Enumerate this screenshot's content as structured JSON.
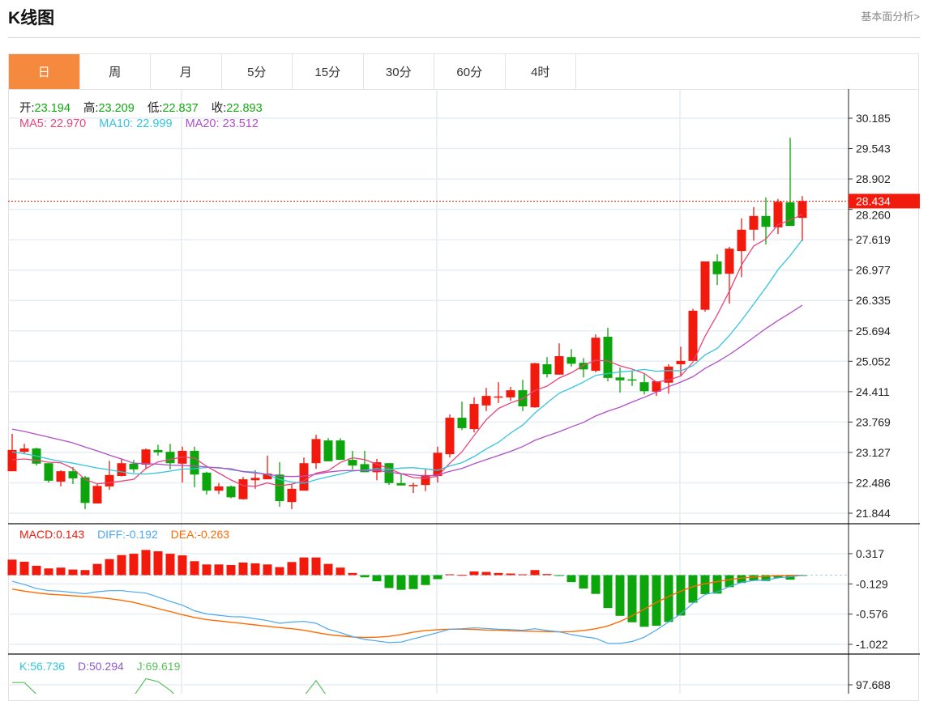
{
  "header": {
    "title": "K线图",
    "link": "基本面分析>"
  },
  "tabs": [
    {
      "label": "日",
      "active": true
    },
    {
      "label": "周"
    },
    {
      "label": "月"
    },
    {
      "label": "5分"
    },
    {
      "label": "15分"
    },
    {
      "label": "30分"
    },
    {
      "label": "60分"
    },
    {
      "label": "4时"
    }
  ],
  "info": {
    "open_label": "开:",
    "open": "23.194",
    "high_label": "高:",
    "high": "23.209",
    "low_label": "低:",
    "low": "22.837",
    "close_label": "收:",
    "close": "22.893",
    "ma5_label": "MA5:",
    "ma5": "22.970",
    "ma10_label": "MA10:",
    "ma10": "22.999",
    "ma20_label": "MA20:",
    "ma20": "23.512"
  },
  "macd_info": {
    "macd_label": "MACD:",
    "macd": "0.143",
    "diff_label": "DIFF:",
    "diff": "-0.192",
    "dea_label": "DEA:",
    "dea": "-0.263"
  },
  "kdj_info": {
    "k_label": "K:",
    "k": "56.736",
    "d_label": "D:",
    "d": "50.294",
    "j_label": "J:",
    "j": "69.619"
  },
  "colors": {
    "up": "#f21a0c",
    "down": "#0ca50c",
    "ma5": "#e8457a",
    "ma10": "#33c5dd",
    "ma20": "#b04fc8",
    "diff": "#4aa8f0",
    "dea": "#ff6a00",
    "j": "#5cbf5c",
    "accent": "#f5893d"
  },
  "chart_data": [
    {
      "type": "candlestick",
      "ylim": [
        21.844,
        30.185
      ],
      "y_ticks": [
        "30.185",
        "29.543",
        "28.902",
        "28.260",
        "27.619",
        "26.977",
        "26.335",
        "25.694",
        "25.052",
        "24.411",
        "23.769",
        "23.127",
        "22.486",
        "21.844"
      ],
      "last_price": "28.434",
      "ohlc": [
        [
          22.73,
          23.52,
          22.73,
          23.18
        ],
        [
          23.14,
          23.31,
          23.09,
          23.21
        ],
        [
          23.21,
          23.23,
          22.85,
          22.89
        ],
        [
          22.9,
          22.9,
          22.49,
          22.53
        ],
        [
          22.51,
          22.75,
          22.41,
          22.73
        ],
        [
          22.73,
          22.82,
          22.46,
          22.58
        ],
        [
          22.6,
          22.63,
          21.93,
          22.06
        ],
        [
          22.05,
          22.46,
          22.05,
          22.42
        ],
        [
          22.41,
          22.95,
          22.34,
          22.65
        ],
        [
          22.63,
          22.98,
          22.62,
          22.9
        ],
        [
          22.89,
          22.97,
          22.7,
          22.77
        ],
        [
          22.87,
          23.21,
          22.77,
          23.19
        ],
        [
          23.18,
          23.29,
          23.06,
          23.13
        ],
        [
          23.14,
          23.31,
          22.77,
          22.9
        ],
        [
          22.89,
          23.25,
          22.49,
          23.16
        ],
        [
          23.16,
          23.25,
          22.39,
          22.66
        ],
        [
          22.7,
          22.72,
          22.24,
          22.32
        ],
        [
          22.32,
          22.48,
          22.25,
          22.41
        ],
        [
          22.41,
          22.43,
          22.16,
          22.18
        ],
        [
          22.14,
          22.61,
          22.13,
          22.56
        ],
        [
          22.54,
          22.75,
          22.36,
          22.59
        ],
        [
          22.56,
          23.06,
          22.56,
          22.68
        ],
        [
          22.66,
          22.92,
          21.98,
          22.1
        ],
        [
          22.08,
          22.46,
          21.93,
          22.36
        ],
        [
          22.32,
          23.02,
          22.32,
          22.9
        ],
        [
          22.9,
          23.5,
          22.78,
          23.41
        ],
        [
          23.38,
          23.43,
          22.94,
          22.94
        ],
        [
          23.38,
          23.43,
          22.97,
          22.97
        ],
        [
          22.97,
          23.16,
          22.77,
          22.85
        ],
        [
          22.88,
          23.16,
          22.71,
          22.71
        ],
        [
          22.71,
          22.99,
          22.54,
          22.92
        ],
        [
          22.9,
          22.9,
          22.44,
          22.48
        ],
        [
          22.48,
          22.68,
          22.43,
          22.43
        ],
        [
          22.43,
          22.49,
          22.27,
          22.44
        ],
        [
          22.44,
          22.78,
          22.31,
          22.65
        ],
        [
          22.63,
          23.25,
          22.49,
          23.12
        ],
        [
          23.09,
          23.93,
          23.02,
          23.86
        ],
        [
          23.86,
          24.2,
          23.6,
          23.64
        ],
        [
          23.62,
          24.29,
          23.55,
          24.15
        ],
        [
          24.12,
          24.49,
          24.0,
          24.32
        ],
        [
          24.29,
          24.61,
          24.17,
          24.31
        ],
        [
          24.29,
          24.51,
          24.22,
          24.44
        ],
        [
          24.44,
          24.66,
          24.0,
          24.1
        ],
        [
          24.08,
          25.02,
          24.07,
          25.01
        ],
        [
          24.99,
          25.14,
          24.71,
          24.78
        ],
        [
          24.77,
          25.43,
          24.77,
          25.16
        ],
        [
          25.14,
          25.31,
          24.94,
          25.0
        ],
        [
          25.02,
          25.12,
          24.71,
          24.88
        ],
        [
          24.85,
          25.62,
          24.82,
          25.55
        ],
        [
          25.57,
          25.76,
          24.63,
          24.7
        ],
        [
          24.71,
          24.92,
          24.39,
          24.65
        ],
        [
          24.67,
          24.85,
          24.53,
          24.65
        ],
        [
          24.61,
          24.78,
          24.35,
          24.42
        ],
        [
          24.41,
          24.63,
          24.32,
          24.63
        ],
        [
          24.6,
          24.99,
          24.37,
          24.94
        ],
        [
          24.99,
          25.36,
          24.75,
          25.06
        ],
        [
          25.06,
          26.16,
          25.06,
          26.12
        ],
        [
          26.14,
          27.16,
          26.1,
          27.16
        ],
        [
          27.16,
          27.31,
          26.66,
          26.89
        ],
        [
          26.9,
          27.47,
          26.27,
          27.43
        ],
        [
          27.38,
          28.07,
          26.83,
          27.83
        ],
        [
          27.83,
          28.31,
          27.6,
          28.12
        ],
        [
          28.12,
          28.51,
          27.52,
          27.89
        ],
        [
          27.88,
          28.48,
          27.74,
          28.42
        ],
        [
          28.41,
          29.77,
          27.91,
          27.91
        ],
        [
          28.08,
          28.54,
          27.59,
          28.434
        ]
      ],
      "ma_leading_values": {
        "ma5": [
          22.97,
          22.99,
          22.96,
          22.92
        ],
        "ma10": [
          23.14,
          23.1,
          23.05,
          22.99,
          22.94,
          22.9,
          22.85,
          22.8,
          22.76
        ],
        "ma20": [
          23.62,
          23.57,
          23.51,
          23.45,
          23.39,
          23.33,
          23.24,
          23.16,
          23.07,
          22.99,
          22.9,
          22.89,
          22.88,
          22.86,
          22.85,
          22.84,
          22.82,
          22.8,
          22.78
        ]
      }
    },
    {
      "type": "bar+line",
      "name": "MACD",
      "ylim": [
        -1.022,
        0.317
      ],
      "y_ticks": [
        "0.317",
        "-0.129",
        "-0.576",
        "-1.022"
      ],
      "macd": [
        0.229,
        0.198,
        0.138,
        0.099,
        0.111,
        0.083,
        0.075,
        0.166,
        0.237,
        0.296,
        0.316,
        0.372,
        0.352,
        0.316,
        0.292,
        0.206,
        0.158,
        0.158,
        0.15,
        0.186,
        0.174,
        0.158,
        0.119,
        0.194,
        0.261,
        0.261,
        0.166,
        0.111,
        0.032,
        -0.032,
        -0.091,
        -0.19,
        -0.217,
        -0.206,
        -0.146,
        -0.059,
        0.012,
        0.004,
        0.055,
        0.047,
        0.032,
        0.024,
        0.012,
        0.075,
        0.016,
        -0.008,
        -0.103,
        -0.198,
        -0.277,
        -0.486,
        -0.601,
        -0.696,
        -0.763,
        -0.747,
        -0.692,
        -0.597,
        -0.407,
        -0.281,
        -0.273,
        -0.178,
        -0.115,
        -0.079,
        -0.087,
        -0.04,
        -0.067,
        -0.008
      ],
      "diff": [
        -0.091,
        -0.138,
        -0.198,
        -0.229,
        -0.237,
        -0.257,
        -0.273,
        -0.245,
        -0.229,
        -0.229,
        -0.249,
        -0.265,
        -0.324,
        -0.387,
        -0.443,
        -0.526,
        -0.573,
        -0.593,
        -0.613,
        -0.617,
        -0.644,
        -0.672,
        -0.711,
        -0.692,
        -0.684,
        -0.711,
        -0.798,
        -0.85,
        -0.909,
        -0.949,
        -0.972,
        -0.996,
        -0.988,
        -0.941,
        -0.897,
        -0.85,
        -0.798,
        -0.791,
        -0.779,
        -0.787,
        -0.798,
        -0.806,
        -0.814,
        -0.791,
        -0.818,
        -0.838,
        -0.877,
        -0.909,
        -0.933,
        -1.008,
        -1.008,
        -0.98,
        -0.917,
        -0.81,
        -0.692,
        -0.573,
        -0.415,
        -0.285,
        -0.249,
        -0.166,
        -0.107,
        -0.079,
        -0.071,
        -0.04,
        -0.024,
        -0.004
      ],
      "dea": [
        -0.206,
        -0.237,
        -0.261,
        -0.281,
        -0.292,
        -0.304,
        -0.316,
        -0.328,
        -0.348,
        -0.372,
        -0.403,
        -0.447,
        -0.494,
        -0.538,
        -0.585,
        -0.625,
        -0.656,
        -0.676,
        -0.696,
        -0.715,
        -0.735,
        -0.755,
        -0.775,
        -0.791,
        -0.814,
        -0.846,
        -0.877,
        -0.897,
        -0.913,
        -0.921,
        -0.917,
        -0.905,
        -0.877,
        -0.842,
        -0.818,
        -0.806,
        -0.798,
        -0.798,
        -0.802,
        -0.81,
        -0.814,
        -0.822,
        -0.826,
        -0.83,
        -0.834,
        -0.838,
        -0.834,
        -0.818,
        -0.791,
        -0.751,
        -0.684,
        -0.601,
        -0.502,
        -0.403,
        -0.316,
        -0.237,
        -0.17,
        -0.126,
        -0.095,
        -0.067,
        -0.043,
        -0.028,
        -0.016,
        -0.008,
        -0.004,
        -0.004
      ]
    },
    {
      "type": "line",
      "name": "KDJ",
      "y_ticks": [
        "97.688"
      ],
      "j_peaks": [
        [
          0,
          100
        ],
        [
          1,
          100
        ],
        [
          2,
          88
        ],
        [
          10,
          86
        ],
        [
          11,
          104
        ],
        [
          12,
          101
        ],
        [
          13,
          92
        ],
        [
          14,
          80
        ],
        [
          24,
          86
        ],
        [
          25,
          102
        ],
        [
          26,
          84
        ]
      ]
    }
  ]
}
